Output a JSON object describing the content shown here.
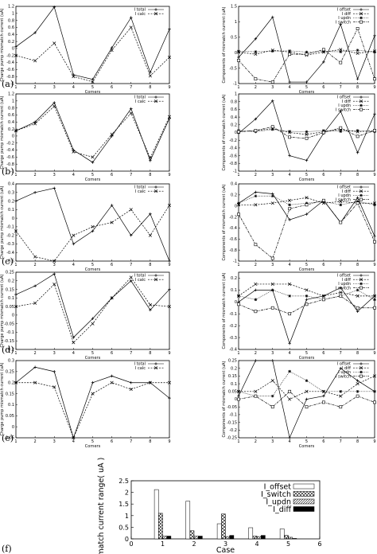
{
  "chart_data": [
    {
      "id": "a-left",
      "panel": "(a)",
      "type": "line",
      "xlabel": "Corners",
      "ylabel": "Charge pump mismatch current (uA)",
      "xlim": [
        1,
        9
      ],
      "ylim": [
        -1,
        1.2
      ],
      "xticks": [
        1,
        2,
        3,
        4,
        5,
        6,
        7,
        8,
        9
      ],
      "yticks": [
        -1,
        -0.8,
        -0.6,
        -0.4,
        -0.2,
        0,
        0.2,
        0.4,
        0.6,
        0.8,
        1,
        1.2
      ],
      "ytick_labels": [
        "-1",
        "-0.8",
        "-0.6",
        "-0.4",
        "-0.2",
        "0",
        "0.2",
        "0.4",
        "0.6",
        "0.8",
        "1",
        "1.2"
      ],
      "x": [
        1,
        2,
        3,
        4,
        5,
        6,
        7,
        8,
        9
      ],
      "series": [
        {
          "name": "I total",
          "marker": "plus",
          "values": [
            0.05,
            0.45,
            1.18,
            -0.75,
            -0.88,
            0.02,
            0.88,
            -0.68,
            0.55
          ]
        },
        {
          "name": "I calc",
          "marker": "x",
          "values": [
            -0.2,
            -0.35,
            0.15,
            -0.8,
            -0.95,
            -0.05,
            0.6,
            -0.78,
            -0.25
          ]
        }
      ]
    },
    {
      "id": "a-right",
      "panel": "",
      "type": "line",
      "xlabel": "Corners",
      "ylabel": "Components of mismatch current (uA)",
      "xlim": [
        1,
        9
      ],
      "ylim": [
        -1,
        1.5
      ],
      "xticks": [
        1,
        2,
        3,
        4,
        5,
        6,
        7,
        8,
        9
      ],
      "yticks": [
        -1,
        -0.5,
        0,
        0.5,
        1,
        1.5
      ],
      "ytick_labels": [
        "-1",
        "-0.5",
        "0",
        "0.5",
        "1",
        "1.5"
      ],
      "x": [
        1,
        2,
        3,
        4,
        5,
        6,
        7,
        8,
        9
      ],
      "series": [
        {
          "name": "I offset",
          "marker": "plus",
          "values": [
            -0.15,
            0.45,
            1.15,
            -0.95,
            -0.95,
            -0.3,
            0.92,
            -0.85,
            0.55
          ]
        },
        {
          "name": "I diff",
          "marker": "x",
          "values": [
            0.02,
            -0.05,
            0.08,
            0.02,
            -0.08,
            0.02,
            0.1,
            -0.02,
            0.05
          ]
        },
        {
          "name": "I updn",
          "marker": "star",
          "values": [
            0.05,
            0.03,
            0.05,
            0.06,
            0.02,
            0.04,
            0.03,
            0.08,
            0.02
          ]
        },
        {
          "name": "I switch",
          "marker": "square",
          "values": [
            -0.25,
            -0.85,
            -0.95,
            -0.05,
            -0.05,
            0.1,
            -0.32,
            0.78,
            -0.85
          ]
        }
      ]
    },
    {
      "id": "b-left",
      "panel": "(b)",
      "type": "line",
      "xlabel": "Corners",
      "ylabel": "Charge pump mismatch current (uA)",
      "xlim": [
        1,
        9
      ],
      "ylim": [
        -1,
        1.2
      ],
      "xticks": [
        1,
        2,
        3,
        4,
        5,
        6,
        7,
        8,
        9
      ],
      "yticks": [
        -1,
        -0.8,
        -0.6,
        -0.4,
        -0.2,
        0,
        0.2,
        0.4,
        0.6,
        0.8,
        1,
        1.2
      ],
      "ytick_labels": [
        "-1",
        "-0.8",
        "-0.6",
        "-0.4",
        "-0.2",
        "0",
        "0.2",
        "0.4",
        "0.6",
        "0.8",
        "1",
        "1.2"
      ],
      "x": [
        1,
        2,
        3,
        4,
        5,
        6,
        7,
        8,
        9
      ],
      "series": [
        {
          "name": "I total",
          "marker": "plus",
          "values": [
            0.15,
            0.4,
            0.95,
            -0.4,
            -0.75,
            0.0,
            0.78,
            -0.7,
            0.5
          ]
        },
        {
          "name": "I calc",
          "marker": "x",
          "values": [
            0.15,
            0.35,
            0.85,
            -0.45,
            -0.6,
            0.05,
            0.65,
            -0.62,
            0.55
          ]
        }
      ]
    },
    {
      "id": "b-right",
      "panel": "",
      "type": "line",
      "xlabel": "Corners",
      "ylabel": "Components of mismatch current (uA)",
      "xlim": [
        1,
        9
      ],
      "ylim": [
        -1,
        1
      ],
      "xticks": [
        1,
        2,
        3,
        4,
        5,
        6,
        7,
        8,
        9
      ],
      "yticks": [
        -1,
        -0.8,
        -0.6,
        -0.4,
        -0.2,
        0,
        0.2,
        0.4,
        0.6,
        0.8,
        1
      ],
      "ytick_labels": [
        "-1",
        "-0.8",
        "-0.6",
        "-0.4",
        "-0.2",
        "0",
        "0.2",
        "0.4",
        "0.6",
        "0.8",
        "1"
      ],
      "x": [
        1,
        2,
        3,
        4,
        5,
        6,
        7,
        8,
        9
      ],
      "series": [
        {
          "name": "I offset",
          "marker": "plus",
          "values": [
            -0.02,
            0.35,
            0.82,
            -0.6,
            -0.72,
            -0.02,
            0.55,
            -0.52,
            0.48
          ]
        },
        {
          "name": "I diff",
          "marker": "x",
          "values": [
            0.02,
            0.05,
            0.1,
            0.0,
            -0.05,
            0.02,
            0.08,
            0.02,
            0.05
          ]
        },
        {
          "name": "I updn",
          "marker": "star",
          "values": [
            0.05,
            0.02,
            0.08,
            0.03,
            0.02,
            0.05,
            0.03,
            0.05,
            0.02
          ]
        },
        {
          "name": "I switch",
          "marker": "square",
          "values": [
            0.02,
            0.05,
            0.15,
            -0.12,
            -0.15,
            0.0,
            0.12,
            -0.1,
            0.05
          ]
        }
      ]
    },
    {
      "id": "c-left",
      "panel": "(c)",
      "type": "line",
      "xlabel": "Corners",
      "ylabel": "Charge pump mismatch current (uA)",
      "xlim": [
        1,
        9
      ],
      "ylim": [
        -0.5,
        0.4
      ],
      "xticks": [
        1,
        2,
        3,
        4,
        5,
        6,
        7,
        8,
        9
      ],
      "yticks": [
        -0.5,
        -0.4,
        -0.3,
        -0.2,
        -0.1,
        0,
        0.1,
        0.2,
        0.3,
        0.4
      ],
      "ytick_labels": [
        "-0.5",
        "-0.4",
        "-0.3",
        "-0.2",
        "-0.1",
        "0",
        "0.1",
        "0.2",
        "0.3",
        "0.4"
      ],
      "x": [
        1,
        2,
        3,
        4,
        5,
        6,
        7,
        8,
        9
      ],
      "series": [
        {
          "name": "I total",
          "marker": "plus",
          "values": [
            0.2,
            0.3,
            0.35,
            -0.3,
            -0.15,
            0.15,
            -0.2,
            0.05,
            -0.5
          ]
        },
        {
          "name": "I calc",
          "marker": "x",
          "values": [
            -0.15,
            -0.45,
            -0.5,
            -0.2,
            -0.1,
            -0.05,
            0.1,
            -0.2,
            0.15
          ]
        }
      ]
    },
    {
      "id": "c-right",
      "panel": "",
      "type": "line",
      "xlabel": "Corners",
      "ylabel": "Components of mismatch current (uA)",
      "xlim": [
        1,
        9
      ],
      "ylim": [
        -1,
        0.4
      ],
      "xticks": [
        1,
        2,
        3,
        4,
        5,
        6,
        7,
        8,
        9
      ],
      "yticks": [
        -1,
        -0.8,
        -0.6,
        -0.4,
        -0.2,
        0,
        0.2,
        0.4
      ],
      "ytick_labels": [
        "-1",
        "-0.8",
        "-0.6",
        "-0.4",
        "-0.2",
        "0",
        "0.2",
        "0.4"
      ],
      "x": [
        1,
        2,
        3,
        4,
        5,
        6,
        7,
        8,
        9
      ],
      "series": [
        {
          "name": "I offset",
          "marker": "plus",
          "values": [
            0.05,
            0.25,
            0.22,
            -0.25,
            -0.15,
            0.1,
            -0.3,
            0.15,
            -0.55
          ]
        },
        {
          "name": "I diff",
          "marker": "x",
          "values": [
            0.02,
            0.02,
            0.05,
            0.1,
            0.15,
            0.05,
            0.08,
            0.05,
            0.05
          ]
        },
        {
          "name": "I updn",
          "marker": "star",
          "values": [
            0.05,
            0.18,
            0.18,
            0.02,
            0.05,
            0.08,
            0.02,
            0.08,
            0.02
          ]
        },
        {
          "name": "I switch",
          "marker": "square",
          "values": [
            -0.15,
            -0.7,
            -0.95,
            -0.05,
            0.02,
            0.1,
            -0.3,
            0.05,
            -0.65
          ]
        }
      ]
    },
    {
      "id": "d-left",
      "panel": "(d)",
      "type": "line",
      "xlabel": "Corners",
      "ylabel": "Charge pump mismatch current (uA)",
      "xlim": [
        1,
        9
      ],
      "ylim": [
        -0.2,
        0.25
      ],
      "xticks": [
        1,
        2,
        3,
        4,
        5,
        6,
        7,
        8,
        9
      ],
      "yticks": [
        -0.2,
        -0.15,
        -0.1,
        -0.05,
        0,
        0.05,
        0.1,
        0.15,
        0.2,
        0.25
      ],
      "ytick_labels": [
        "-0.2",
        "-0.15",
        "-0.1",
        "-0.05",
        "0",
        "0.05",
        "0.1",
        "0.15",
        "0.2",
        "0.25"
      ],
      "x": [
        1,
        2,
        3,
        4,
        5,
        6,
        7,
        8,
        9
      ],
      "series": [
        {
          "name": "I total",
          "marker": "plus",
          "values": [
            0.12,
            0.17,
            0.24,
            -0.13,
            -0.02,
            0.1,
            0.2,
            0.03,
            0.15
          ]
        },
        {
          "name": "I calc",
          "marker": "x",
          "values": [
            0.05,
            0.07,
            0.18,
            -0.16,
            -0.05,
            0.1,
            0.22,
            0.06,
            0.05
          ]
        }
      ]
    },
    {
      "id": "d-right",
      "panel": "",
      "type": "line",
      "xlabel": "Corners",
      "ylabel": "Components of mismatch current (uA)",
      "xlim": [
        1,
        9
      ],
      "ylim": [
        -0.4,
        0.25
      ],
      "xticks": [
        1,
        2,
        3,
        4,
        5,
        6,
        7,
        8,
        9
      ],
      "yticks": [
        -0.4,
        -0.3,
        -0.2,
        -0.1,
        0,
        0.1,
        0.2
      ],
      "ytick_labels": [
        "-0.4",
        "-0.3",
        "-0.2",
        "-0.1",
        "0",
        "0.1",
        "0.2"
      ],
      "x": [
        1,
        2,
        3,
        4,
        5,
        6,
        7,
        8,
        9
      ],
      "series": [
        {
          "name": "I offset",
          "marker": "plus",
          "values": [
            0.0,
            0.1,
            0.1,
            -0.35,
            0.02,
            0.05,
            0.12,
            -0.08,
            0.05
          ]
        },
        {
          "name": "I diff",
          "marker": "x",
          "values": [
            0.05,
            0.15,
            0.15,
            0.15,
            0.1,
            0.05,
            0.08,
            0.05,
            0.05
          ]
        },
        {
          "name": "I updn",
          "marker": "star",
          "values": [
            0.05,
            0.02,
            0.1,
            0.05,
            0.05,
            0.02,
            0.05,
            0.1,
            0.02
          ]
        },
        {
          "name": "I switch",
          "marker": "square",
          "values": [
            -0.02,
            -0.08,
            -0.05,
            -0.1,
            -0.02,
            0.02,
            0.05,
            -0.05,
            -0.05
          ]
        }
      ]
    },
    {
      "id": "e-left",
      "panel": "(e)",
      "type": "line",
      "xlabel": "Corners",
      "ylabel": "Charge pump mismatch current (uA)",
      "xlim": [
        1,
        9
      ],
      "ylim": [
        -0.05,
        0.3
      ],
      "xticks": [
        1,
        2,
        3,
        4,
        5,
        6,
        7,
        8,
        9
      ],
      "yticks": [
        -0.05,
        0,
        0.05,
        0.1,
        0.15,
        0.2,
        0.25,
        0.3
      ],
      "ytick_labels": [
        "-0.05",
        "0",
        "0.05",
        "0.1",
        "0.15",
        "0.2",
        "0.25",
        "0.3"
      ],
      "x": [
        1,
        2,
        3,
        4,
        5,
        6,
        7,
        8,
        9
      ],
      "series": [
        {
          "name": "I total",
          "marker": "plus",
          "values": [
            0.2,
            0.27,
            0.25,
            -0.05,
            0.2,
            0.23,
            0.2,
            0.2,
            0.13
          ]
        },
        {
          "name": "I calc",
          "marker": "x",
          "values": [
            0.2,
            0.2,
            0.18,
            -0.05,
            0.15,
            0.2,
            0.17,
            0.2,
            0.2
          ]
        }
      ]
    },
    {
      "id": "e-right",
      "panel": "",
      "type": "line",
      "xlabel": "Corners",
      "ylabel": "Components of mismatch current (uA)",
      "xlim": [
        1,
        9
      ],
      "ylim": [
        -0.25,
        0.25
      ],
      "xticks": [
        1,
        2,
        3,
        4,
        5,
        6,
        7,
        8,
        9
      ],
      "yticks": [
        -0.25,
        -0.2,
        -0.15,
        -0.1,
        -0.05,
        0,
        0.05,
        0.1,
        0.15,
        0.2,
        0.25
      ],
      "ytick_labels": [
        "-0.25",
        "-0.2",
        "-0.15",
        "-0.1",
        "-0.05",
        "0",
        "0.05",
        "0.1",
        "0.15",
        "0.2",
        "0.25"
      ],
      "x": [
        1,
        2,
        3,
        4,
        5,
        6,
        7,
        8,
        9
      ],
      "series": [
        {
          "name": "I offset",
          "marker": "plus",
          "values": [
            0.02,
            0.25,
            0.25,
            -0.25,
            0.0,
            0.02,
            0.2,
            0.12,
            0.05
          ]
        },
        {
          "name": "I diff",
          "marker": "x",
          "values": [
            0.05,
            0.05,
            0.12,
            0.0,
            0.05,
            0.05,
            0.02,
            0.1,
            0.15
          ]
        },
        {
          "name": "I updn",
          "marker": "star",
          "values": [
            0.05,
            0.02,
            0.02,
            0.18,
            0.12,
            0.05,
            0.05,
            0.05,
            0.05
          ]
        },
        {
          "name": "I switch",
          "marker": "square",
          "values": [
            0.0,
            0.02,
            -0.05,
            0.05,
            -0.05,
            -0.02,
            -0.05,
            0.02,
            -0.02
          ]
        }
      ]
    },
    {
      "id": "f",
      "panel": "(f)",
      "type": "bar",
      "xlabel": "Case",
      "ylabel": "Mismatch current range( uA )",
      "xlim": [
        0,
        6
      ],
      "ylim": [
        0,
        2.5
      ],
      "xticks": [
        0,
        1,
        2,
        3,
        4,
        5,
        6
      ],
      "yticks": [
        0,
        0.5,
        1,
        1.5,
        2,
        2.5
      ],
      "ytick_labels": [
        "0",
        "0.5",
        "1",
        "1.5",
        "2",
        "2.5"
      ],
      "categories": [
        1,
        2,
        3,
        4,
        5
      ],
      "series": [
        {
          "name": "I_offset",
          "fill": "white",
          "values": [
            2.12,
            1.62,
            0.65,
            0.48,
            0.43
          ]
        },
        {
          "name": "I_switch",
          "fill": "crosshatch",
          "values": [
            1.1,
            0.35,
            1.07,
            0.12,
            0.15
          ]
        },
        {
          "name": "I_updn",
          "fill": "diagonal",
          "values": [
            0.12,
            0.12,
            0.1,
            0.1,
            0.07
          ]
        },
        {
          "name": "I_diff",
          "fill": "black",
          "values": [
            0.12,
            0.12,
            0.15,
            0.15,
            0.02
          ]
        }
      ]
    }
  ]
}
